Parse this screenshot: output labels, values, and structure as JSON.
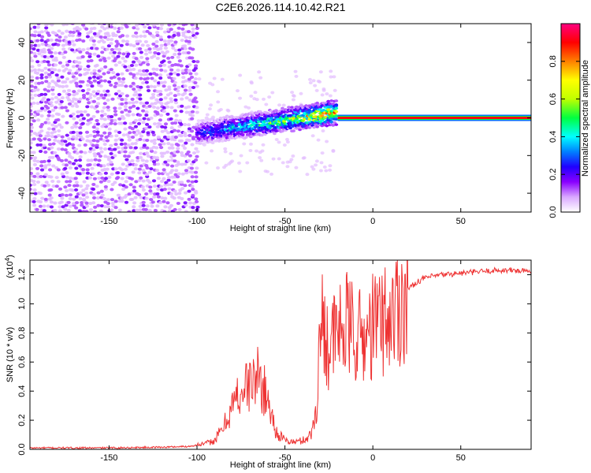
{
  "title": "C2E6.2026.114.10.42.R21",
  "chart_data": [
    {
      "type": "heatmap",
      "xlabel": "Height of straight line (km)",
      "ylabel": "Frequency (Hz)",
      "xlim": [
        -195,
        90
      ],
      "ylim": [
        -50,
        50
      ],
      "xticks": [
        -150,
        -100,
        -50,
        0,
        50
      ],
      "yticks": [
        -40,
        -20,
        0,
        20,
        40
      ],
      "colorbar": {
        "label": "Normalized spectral amplitude",
        "range": [
          0,
          1
        ],
        "ticks": [
          "0.0",
          "0.2",
          "0.4",
          "0.6",
          "0.8"
        ],
        "tick_values": [
          0,
          0.2,
          0.4,
          0.6,
          0.8
        ],
        "colors": [
          "#ffffff",
          "#d9a8ff",
          "#8a00ff",
          "#2000ff",
          "#0080ff",
          "#00ffff",
          "#00ff40",
          "#c0ff00",
          "#ffff00",
          "#ff8000",
          "#ff0000",
          "#ff0080"
        ]
      },
      "regions": [
        {
          "name": "noise",
          "x": [
            -195,
            -100
          ],
          "y": [
            -50,
            50
          ],
          "amplitude": 0.1
        },
        {
          "name": "transition",
          "x": [
            -100,
            -20
          ],
          "y_center": [
            -8,
            3
          ],
          "amplitude": [
            0.3,
            0.9
          ]
        },
        {
          "name": "carrier",
          "x": [
            -20,
            90
          ],
          "y_center": 0,
          "amplitude": 1.0
        }
      ]
    },
    {
      "type": "line",
      "xlabel": "Height of straight line (km)",
      "ylabel": "SNR (10 * v/v)",
      "y_multiplier": "(x10",
      "y_multiplier_exp": "4",
      "y_multiplier_close": ")",
      "xlim": [
        -195,
        90
      ],
      "ylim": [
        0,
        1.3
      ],
      "xticks": [
        -150,
        -100,
        -50,
        0,
        50
      ],
      "yticks": [
        "0.0",
        "0.2",
        "0.4",
        "0.6",
        "0.8",
        "1.0",
        "1.2"
      ],
      "ytick_values": [
        0,
        0.2,
        0.4,
        0.6,
        0.8,
        1.0,
        1.2
      ],
      "color": "#ee3333",
      "series": [
        {
          "name": "SNR",
          "x": [
            -195,
            -150,
            -120,
            -105,
            -100,
            -95,
            -90,
            -85,
            -80,
            -75,
            -70,
            -65,
            -60,
            -55,
            -50,
            -45,
            -40,
            -35,
            -32,
            -30,
            -28,
            -25,
            -20,
            -15,
            -10,
            -5,
            0,
            5,
            10,
            15,
            20,
            25,
            30,
            40,
            50,
            60,
            70,
            80,
            90
          ],
          "values": [
            0.01,
            0.01,
            0.015,
            0.02,
            0.03,
            0.04,
            0.06,
            0.15,
            0.3,
            0.4,
            0.45,
            0.5,
            0.35,
            0.12,
            0.06,
            0.05,
            0.06,
            0.1,
            0.3,
            0.8,
            0.9,
            0.7,
            0.8,
            0.85,
            0.8,
            0.75,
            0.85,
            0.9,
            0.9,
            1.0,
            1.1,
            1.15,
            1.18,
            1.2,
            1.21,
            1.22,
            1.23,
            1.23,
            1.22
          ]
        }
      ]
    }
  ]
}
